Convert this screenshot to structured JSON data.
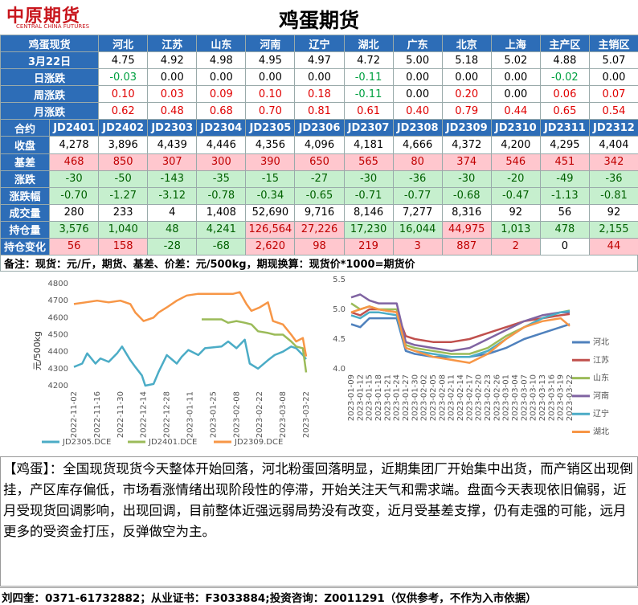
{
  "header": {
    "logo": "中原期货",
    "logo_sub": "CENTRAL CHINA FUTURES",
    "title": "鸡蛋期货"
  },
  "spot_table": {
    "columns": [
      "鸡蛋现货",
      "河北",
      "江苏",
      "山东",
      "河南",
      "辽宁",
      "湖北",
      "广东",
      "北京",
      "上海",
      "主产区",
      "主销区"
    ],
    "rows": [
      [
        "3月22日",
        "4.75",
        "4.92",
        "4.98",
        "4.95",
        "4.97",
        "4.72",
        "5.00",
        "5.18",
        "5.02",
        "4.88",
        "5.07"
      ],
      [
        "日涨跌",
        "-0.03",
        "0.00",
        "0.00",
        "0.00",
        "0.00",
        "-0.11",
        "0.00",
        "0.00",
        "0.00",
        "-0.02",
        "0.00"
      ],
      [
        "周涨跌",
        "0.10",
        "0.03",
        "0.09",
        "0.10",
        "0.18",
        "-0.11",
        "0.00",
        "0.20",
        "0.00",
        "0.06",
        "0.07"
      ],
      [
        "月涨跌",
        "0.62",
        "0.48",
        "0.68",
        "0.70",
        "0.81",
        "0.61",
        "0.40",
        "0.79",
        "0.44",
        "0.65",
        "0.54"
      ]
    ]
  },
  "futures_table": {
    "columns": [
      "合约",
      "JD2401",
      "JD2402",
      "JD2303",
      "JD2304",
      "JD2305",
      "JD2306",
      "JD2307",
      "JD2308",
      "JD2309",
      "JD2310",
      "JD2311",
      "JD2312"
    ],
    "rows": [
      [
        "收盘",
        "4,278",
        "3,896",
        "4,439",
        "4,446",
        "4,356",
        "4,096",
        "4,181",
        "4,666",
        "4,372",
        "4,200",
        "4,295",
        "4,404"
      ],
      [
        "基差",
        "468",
        "850",
        "307",
        "300",
        "390",
        "650",
        "565",
        "80",
        "374",
        "546",
        "451",
        "342"
      ],
      [
        "涨跌",
        "-30",
        "-50",
        "-143",
        "-35",
        "-15",
        "-27",
        "-30",
        "-36",
        "-30",
        "-20",
        "-49",
        "-36"
      ],
      [
        "涨跌幅",
        "-0.70",
        "-1.27",
        "-3.12",
        "-0.78",
        "-0.34",
        "-0.65",
        "-0.71",
        "-0.77",
        "-0.68",
        "-0.47",
        "-1.13",
        "-0.81"
      ],
      [
        "成交量",
        "280",
        "233",
        "4",
        "1,408",
        "52,690",
        "9,716",
        "8,146",
        "7,277",
        "8,316",
        "92",
        "56",
        "92"
      ],
      [
        "持仓量",
        "3,576",
        "1,040",
        "48",
        "4,241",
        "126,564",
        "27,226",
        "17,230",
        "16,044",
        "44,975",
        "1,013",
        "478",
        "2,155"
      ],
      [
        "持仓变化",
        "56",
        "158",
        "-28",
        "-68",
        "2,620",
        "98",
        "219",
        "3",
        "887",
        "2",
        "0",
        "44"
      ]
    ],
    "cell_colors": [
      [
        "#ffffff",
        "#ffffff",
        "#ffffff",
        "#ffffff",
        "#ffffff",
        "#ffffff",
        "#ffffff",
        "#ffffff",
        "#ffffff",
        "#ffffff",
        "#ffffff",
        "#ffffff"
      ],
      [
        "#ffc7ce",
        "#ffc7ce",
        "#ffc7ce",
        "#ffc7ce",
        "#ffc7ce",
        "#ffc7ce",
        "#ffc7ce",
        "#ffc7ce",
        "#ffc7ce",
        "#ffc7ce",
        "#ffc7ce",
        "#ffc7ce"
      ],
      [
        "#c6efce",
        "#c6efce",
        "#c6efce",
        "#c6efce",
        "#c6efce",
        "#c6efce",
        "#c6efce",
        "#c6efce",
        "#c6efce",
        "#c6efce",
        "#c6efce",
        "#c6efce"
      ],
      [
        "#c6efce",
        "#c6efce",
        "#c6efce",
        "#c6efce",
        "#c6efce",
        "#c6efce",
        "#c6efce",
        "#c6efce",
        "#c6efce",
        "#c6efce",
        "#c6efce",
        "#c6efce"
      ],
      [
        "#ffffff",
        "#ffffff",
        "#ffffff",
        "#ffffff",
        "#ffffff",
        "#ffffff",
        "#ffffff",
        "#ffffff",
        "#ffffff",
        "#ffffff",
        "#ffffff",
        "#ffffff"
      ],
      [
        "#c6efce",
        "#c6efce",
        "#c6efce",
        "#c6efce",
        "#ffc7ce",
        "#ffc7ce",
        "#c6efce",
        "#c6efce",
        "#ffc7ce",
        "#c6efce",
        "#c6efce",
        "#c6efce"
      ],
      [
        "#ffc7ce",
        "#ffc7ce",
        "#c6efce",
        "#c6efce",
        "#ffc7ce",
        "#ffc7ce",
        "#ffc7ce",
        "#ffc7ce",
        "#ffc7ce",
        "#ffc7ce",
        "#ffffff",
        "#ffc7ce"
      ]
    ]
  },
  "note": "备注：现货：元/斤，期货、基差、价差：元/500kg，期现换算：现货价*1000=期货价",
  "chart_data": [
    {
      "type": "line",
      "y_label": "元/500kg",
      "legend": "bottom",
      "xlim": [
        "2022-11-02",
        "2023-03-22"
      ],
      "xticks": [
        "2022-11-02",
        "2022-11-16",
        "2022-11-30",
        "2022-12-14",
        "2022-12-28",
        "2023-01-11",
        "2023-01-25",
        "2023-02-08",
        "2023-02-22",
        "2023-03-08",
        "2023-03-22"
      ],
      "ylim": [
        4200,
        4800
      ],
      "yticks": [
        4200,
        4300,
        4400,
        4500,
        4600,
        4700,
        4800
      ],
      "series": [
        {
          "name": "JD2305.DCE",
          "color": "#4bacc6",
          "x": [
            "2022-11-02",
            "2022-11-07",
            "2022-11-10",
            "2022-11-15",
            "2022-11-18",
            "2022-11-23",
            "2022-11-28",
            "2022-12-01",
            "2022-12-06",
            "2022-12-09",
            "2022-12-13",
            "2022-12-15",
            "2022-12-20",
            "2022-12-23",
            "2022-12-28",
            "2023-01-03",
            "2023-01-06",
            "2023-01-10",
            "2023-01-16",
            "2023-01-20",
            "2023-01-30",
            "2023-02-03",
            "2023-02-08",
            "2023-02-13",
            "2023-02-16",
            "2023-02-21",
            "2023-02-27",
            "2023-03-03",
            "2023-03-08",
            "2023-03-13",
            "2023-03-16",
            "2023-03-20",
            "2023-03-22"
          ],
          "values": [
            4310,
            4330,
            4390,
            4330,
            4360,
            4340,
            4390,
            4430,
            4350,
            4310,
            4260,
            4200,
            4210,
            4280,
            4380,
            4330,
            4370,
            4410,
            4380,
            4420,
            4430,
            4460,
            4420,
            4470,
            4330,
            4300,
            4350,
            4380,
            4400,
            4430,
            4420,
            4380,
            4356
          ]
        },
        {
          "name": "JD2401.DCE",
          "color": "#9bbb59",
          "x": [
            "2023-01-18",
            "2023-01-20",
            "2023-01-30",
            "2023-02-03",
            "2023-02-08",
            "2023-02-13",
            "2023-02-17",
            "2023-02-21",
            "2023-02-27",
            "2023-03-03",
            "2023-03-08",
            "2023-03-13",
            "2023-03-16",
            "2023-03-20",
            "2023-03-22"
          ],
          "values": [
            4590,
            4590,
            4590,
            4570,
            4580,
            4570,
            4560,
            4520,
            4510,
            4500,
            4500,
            4460,
            4430,
            4420,
            4278
          ]
        },
        {
          "name": "JD2309.DCE",
          "color": "#f79646",
          "x": [
            "2022-11-02",
            "2022-11-09",
            "2022-11-16",
            "2022-11-23",
            "2022-11-30",
            "2022-12-06",
            "2022-12-09",
            "2022-12-14",
            "2022-12-20",
            "2022-12-23",
            "2022-12-28",
            "2023-01-03",
            "2023-01-09",
            "2023-01-16",
            "2023-01-30",
            "2023-02-06",
            "2023-02-10",
            "2023-02-14",
            "2023-02-17",
            "2023-02-22",
            "2023-02-27",
            "2023-03-02",
            "2023-03-08",
            "2023-03-13",
            "2023-03-16",
            "2023-03-20",
            "2023-03-22"
          ],
          "values": [
            4680,
            4690,
            4700,
            4690,
            4700,
            4680,
            4630,
            4580,
            4600,
            4630,
            4660,
            4700,
            4730,
            4740,
            4740,
            4740,
            4750,
            4680,
            4640,
            4660,
            4690,
            4580,
            4560,
            4500,
            4460,
            4480,
            4372
          ]
        }
      ]
    },
    {
      "type": "line",
      "legend": "right",
      "xlim": [
        "2023-01-09",
        "2023-03-22"
      ],
      "xticks": [
        "2023-01-09",
        "2023-01-12",
        "2023-01-15",
        "2023-01-18",
        "2023-01-21",
        "2023-01-24",
        "2023-01-27",
        "2023-01-30",
        "2023-02-02",
        "2023-02-05",
        "2023-02-08",
        "2023-02-11",
        "2023-02-14",
        "2023-02-17",
        "2023-02-20",
        "2023-02-23",
        "2023-02-26",
        "2023-03-01",
        "2023-03-04",
        "2023-03-07",
        "2023-03-10",
        "2023-03-13",
        "2023-03-16",
        "2023-03-19",
        "2023-03-22"
      ],
      "ylim": [
        4,
        5.5
      ],
      "yticks": [
        {
          "value": 4,
          "label": "4.0"
        },
        4.5,
        {
          "value": 5,
          "label": "5.0"
        },
        5.5
      ],
      "x": [
        "2023-01-09",
        "2023-01-12",
        "2023-01-15",
        "2023-01-18",
        "2023-01-24",
        "2023-01-27",
        "2023-01-30",
        "2023-02-05",
        "2023-02-11",
        "2023-02-17",
        "2023-02-23",
        "2023-03-01",
        "2023-03-07",
        "2023-03-13",
        "2023-03-19",
        "2023-03-22"
      ],
      "series": [
        {
          "name": "河北",
          "color": "#4f81bd",
          "values": [
            4.75,
            4.7,
            4.85,
            4.85,
            4.85,
            4.3,
            4.25,
            4.2,
            4.2,
            4.2,
            4.25,
            4.35,
            4.5,
            4.6,
            4.7,
            4.75
          ]
        },
        {
          "name": "江苏",
          "color": "#c0504d",
          "values": [
            4.95,
            4.9,
            5.0,
            5.0,
            4.95,
            4.55,
            4.5,
            4.45,
            4.45,
            4.5,
            4.6,
            4.7,
            4.8,
            4.85,
            4.9,
            4.92
          ]
        },
        {
          "name": "山东",
          "color": "#9bbb59",
          "values": [
            5.1,
            5.0,
            5.05,
            5.0,
            5.0,
            4.4,
            4.35,
            4.3,
            4.25,
            4.25,
            4.35,
            4.55,
            4.7,
            4.85,
            4.95,
            4.98
          ]
        },
        {
          "name": "河南",
          "color": "#8064a2",
          "values": [
            5.2,
            5.25,
            5.15,
            5.1,
            5.1,
            4.45,
            4.4,
            4.35,
            4.3,
            4.35,
            4.5,
            4.65,
            4.8,
            4.9,
            4.95,
            4.95
          ]
        },
        {
          "name": "辽宁",
          "color": "#4bacc6",
          "values": [
            4.9,
            4.85,
            4.95,
            4.95,
            4.9,
            4.35,
            4.3,
            4.25,
            4.2,
            4.2,
            4.3,
            4.5,
            4.7,
            4.85,
            4.95,
            4.97
          ]
        },
        {
          "name": "湖北",
          "color": "#f79646",
          "values": [
            4.95,
            5.0,
            5.05,
            5.0,
            4.95,
            4.35,
            4.3,
            4.2,
            4.15,
            4.1,
            4.25,
            4.5,
            4.7,
            4.8,
            4.85,
            4.72
          ]
        }
      ]
    }
  ],
  "commentary": "【鸡蛋】：全国现货现货今天整体开始回落，河北粉蛋回落明显，近期集团厂开始集中出货，而产销区出现倒挂，产区库存偏低，市场看涨情绪出现阶段性的停滞，开始关注天气和需求端。盘面今天表现依旧偏弱，近月受现货回调影响，出现回调，目前整体近强远弱局势没有改变，近月受基差支撑，仍有走强的可能，远月更多的受资金打压，反弹做空为主。",
  "footer": "刘四奎：0371-61732882；从业证书：F3033884;投资咨询：Z0011291（仅供参考，不作为入市依据）"
}
